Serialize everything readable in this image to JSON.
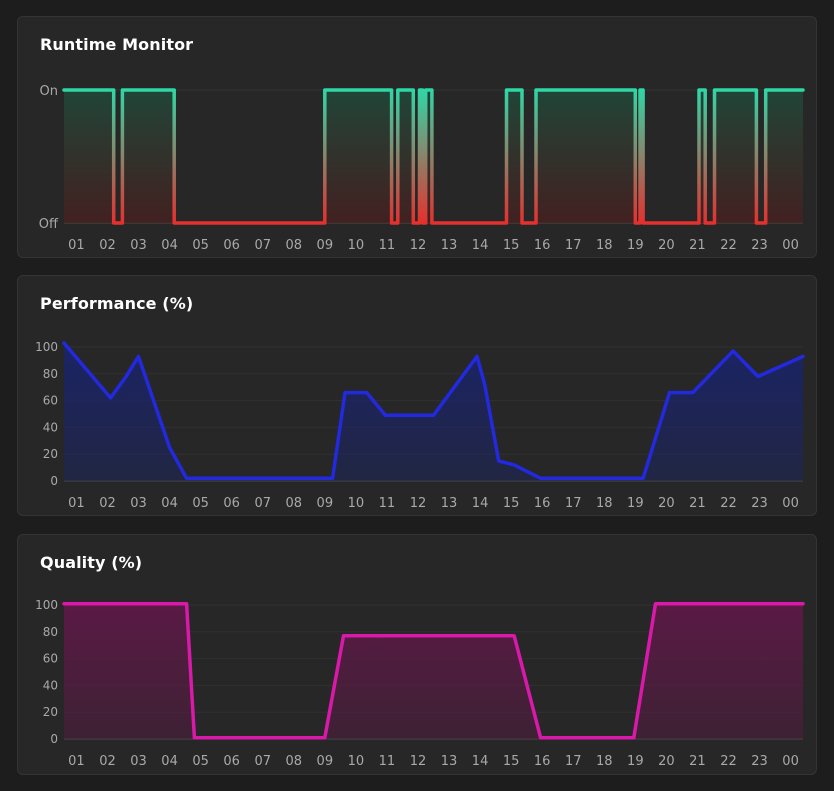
{
  "chart_data": [
    {
      "id": "runtime",
      "type": "line",
      "title": "Runtime Monitor",
      "step": true,
      "yticks": [
        "Off",
        "On"
      ],
      "colors": {
        "on": "#2fd7a6",
        "off": "#e5302e"
      },
      "categories": [
        "01",
        "02",
        "03",
        "04",
        "05",
        "06",
        "07",
        "08",
        "09",
        "10",
        "11",
        "12",
        "13",
        "14",
        "15",
        "16",
        "17",
        "18",
        "19",
        "20",
        "21",
        "22",
        "23",
        "00"
      ],
      "xlim": [
        0.6,
        24.4
      ],
      "x": [
        0.6,
        2.2,
        2.2,
        2.48,
        2.48,
        4.15,
        4.15,
        9.0,
        9.0,
        11.15,
        11.15,
        11.35,
        11.35,
        11.85,
        11.85,
        12.05,
        12.05,
        12.15,
        12.15,
        12.25,
        12.25,
        12.45,
        12.45,
        14.85,
        14.85,
        15.35,
        15.35,
        15.8,
        15.8,
        19.0,
        19.0,
        19.15,
        19.15,
        19.25,
        19.25,
        21.05,
        21.05,
        21.25,
        21.25,
        21.55,
        21.55,
        22.9,
        22.9,
        23.2,
        23.2,
        24.4
      ],
      "values": [
        1,
        1,
        0,
        0,
        1,
        1,
        0,
        0,
        1,
        1,
        0,
        0,
        1,
        1,
        0,
        0,
        1,
        1,
        0,
        0,
        1,
        1,
        0,
        0,
        1,
        1,
        0,
        0,
        1,
        1,
        0,
        0,
        1,
        1,
        0,
        0,
        1,
        1,
        0,
        0,
        1,
        1,
        0,
        0,
        1,
        1
      ]
    },
    {
      "id": "performance",
      "type": "area",
      "title": "Performance (%)",
      "color": "#2329dd",
      "fill": "#1b2465",
      "ylim": [
        0,
        100
      ],
      "yticks": [
        0,
        20,
        40,
        60,
        80,
        100
      ],
      "categories": [
        "01",
        "02",
        "03",
        "04",
        "05",
        "06",
        "07",
        "08",
        "09",
        "10",
        "11",
        "12",
        "13",
        "14",
        "15",
        "16",
        "17",
        "18",
        "19",
        "20",
        "21",
        "22",
        "23",
        "00"
      ],
      "xlim": [
        0.6,
        24.4
      ],
      "x": [
        0.6,
        2.1,
        2.6,
        3.0,
        4.0,
        4.55,
        9.25,
        9.65,
        10.35,
        10.95,
        12.5,
        13.9,
        14.15,
        14.6,
        15.1,
        15.95,
        19.25,
        20.1,
        20.85,
        22.15,
        22.95,
        24.4
      ],
      "values": [
        103,
        62,
        78,
        93,
        25,
        2,
        2,
        66,
        66,
        49,
        49,
        93,
        72,
        15,
        12,
        2,
        2,
        66,
        66,
        97,
        78,
        93
      ]
    },
    {
      "id": "quality",
      "type": "area",
      "title": "Quality (%)",
      "color": "#d919a9",
      "fill": "#5a1a45",
      "ylim": [
        0,
        100
      ],
      "yticks": [
        0,
        20,
        40,
        60,
        80,
        100
      ],
      "categories": [
        "01",
        "02",
        "03",
        "04",
        "05",
        "06",
        "07",
        "08",
        "09",
        "10",
        "11",
        "12",
        "13",
        "14",
        "15",
        "16",
        "17",
        "18",
        "19",
        "20",
        "21",
        "22",
        "23",
        "00"
      ],
      "xlim": [
        0.6,
        24.4
      ],
      "x": [
        0.6,
        4.55,
        4.8,
        9.0,
        9.6,
        15.1,
        15.95,
        18.95,
        19.65,
        24.4
      ],
      "values": [
        101,
        101,
        1,
        1,
        77,
        77,
        1,
        1,
        101,
        101
      ]
    }
  ]
}
